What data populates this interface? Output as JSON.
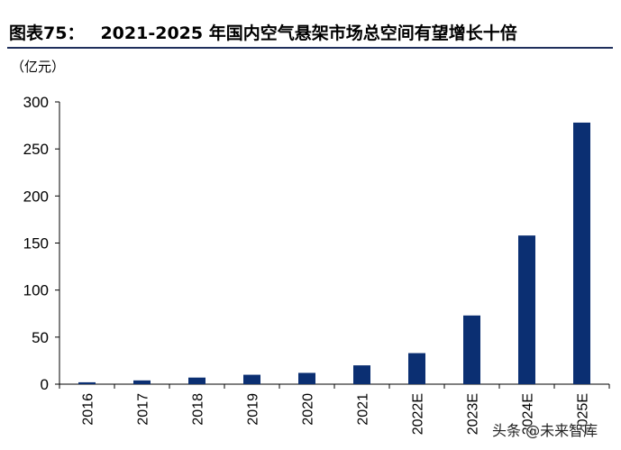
{
  "title_label": "图表75：",
  "title_text": "2021-2025 年国内空气悬架市场总空间有望增长十倍",
  "unit_label": "（亿元）",
  "watermark": "头条 @未来智库",
  "colors": {
    "bar": "#0b2f72",
    "axis": "#000000",
    "title_rule": "#1f2f5c"
  },
  "chart_data": {
    "type": "bar",
    "title": "2021-2025 年国内空气悬架市场总空间有望增长十倍",
    "ylabel": "（亿元）",
    "xlabel": "",
    "categories": [
      "2016",
      "2017",
      "2018",
      "2019",
      "2020",
      "2021",
      "2022E",
      "2023E",
      "2024E",
      "2025E"
    ],
    "values": [
      2,
      4,
      7,
      10,
      12,
      20,
      33,
      73,
      158,
      278
    ],
    "ylim": [
      0,
      300
    ],
    "yticks": [
      0,
      50,
      100,
      150,
      200,
      250,
      300
    ],
    "grid": false,
    "legend": "none"
  }
}
